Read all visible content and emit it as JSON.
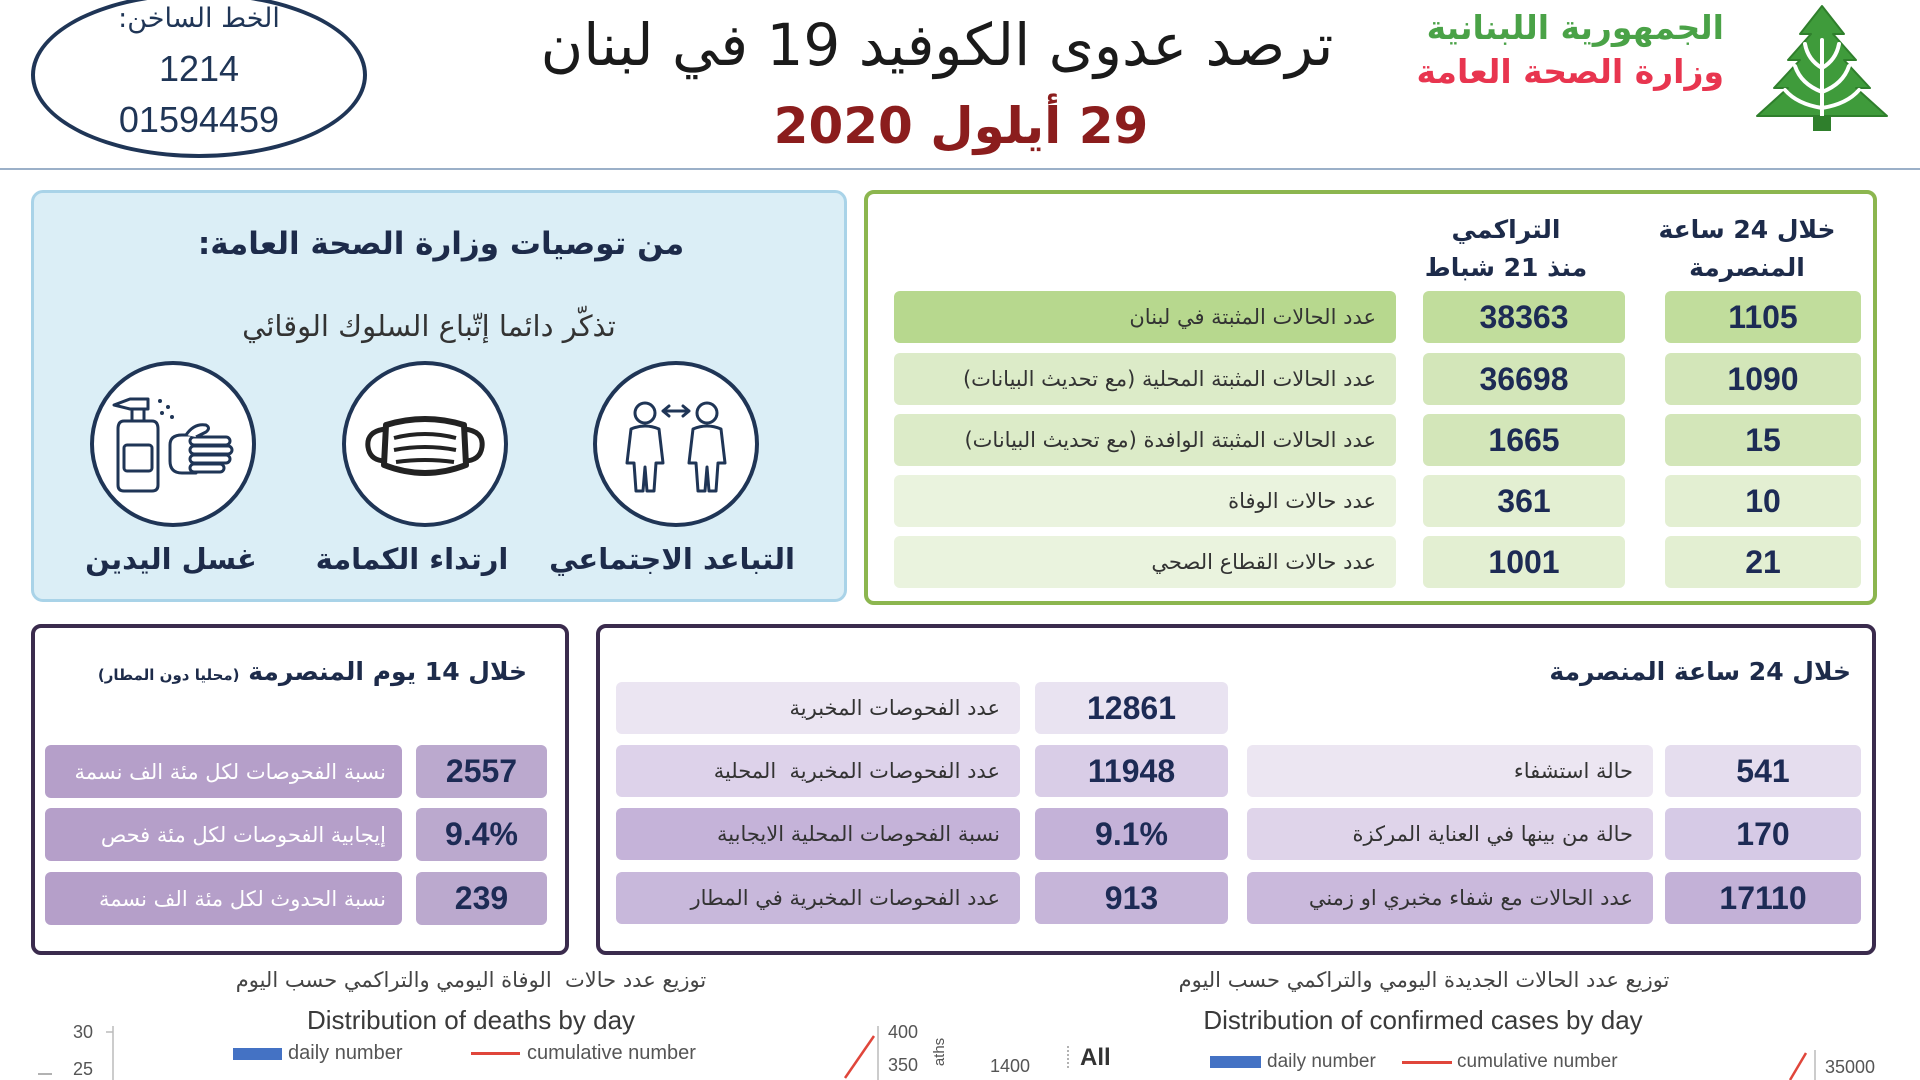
{
  "hotline": {
    "label": "الخط الساخن:",
    "number_short": "1214",
    "number_long": "01594459"
  },
  "header": {
    "title": "ترصد عدوى الكوفيد 19 في لبنان",
    "date": "29 أيلول 2020",
    "org_line1": "الجمهورية اللبنانية",
    "org_line2": "وزارة الصحة العامة",
    "logo_icon": "cedar-icon"
  },
  "recommendations": {
    "title": "من توصيات وزارة الصحة العامة:",
    "subtitle": "تذكّر دائما إتّباع السلوك الوقائي",
    "items": [
      {
        "label": "التباعد الاجتماعي",
        "icon": "social-distancing-icon"
      },
      {
        "label": "ارتداء الكمامة",
        "icon": "face-mask-icon"
      },
      {
        "label": "غسل اليدين",
        "icon": "hand-sanitizer-icon"
      }
    ]
  },
  "summary": {
    "col_last_24h": {
      "line1": "خلال 24 ساعة",
      "line2": "المنصرمة"
    },
    "col_cumulative": {
      "line1": "التراكمي",
      "line2": "منذ 21 شباط"
    },
    "rows": [
      {
        "label": "عدد الحالات المثبتة في لبنان",
        "cumulative": "38363",
        "last_24h": "1105"
      },
      {
        "label": "عدد الحالات المثبتة المحلية (مع تحديث البيانات)",
        "cumulative": "36698",
        "last_24h": "1090"
      },
      {
        "label": "عدد الحالات المثبتة الوافدة (مع تحديث البيانات)",
        "cumulative": "1665",
        "last_24h": "15"
      },
      {
        "label": "عدد حالات الوفاة",
        "cumulative": "361",
        "last_24h": "10"
      },
      {
        "label": "عدد حالات القطاع الصحي",
        "cumulative": "1001",
        "last_24h": "21"
      }
    ]
  },
  "last_14_days": {
    "title": "خلال 14 يوم المنصرمة",
    "note": "(محليا دون المطار)",
    "rows": [
      {
        "label": "نسبة الفحوصات لكل مئة الف نسمة",
        "value": "2557"
      },
      {
        "label": "إيجابية الفحوصات لكل مئة فحص",
        "value": "9.4%"
      },
      {
        "label": "نسبة الحدوث لكل مئة الف نسمة",
        "value": "239"
      }
    ]
  },
  "last_24_hours": {
    "title": "خلال 24 ساعة المنصرمة",
    "tests": [
      {
        "label": "عدد الفحوصات المخبرية",
        "value": "12861"
      },
      {
        "label": "عدد الفحوصات المخبرية  المحلية",
        "value": "11948"
      },
      {
        "label": "نسبة الفحوصات المحلية الايجابية",
        "value": "9.1%"
      },
      {
        "label": "عدد الفحوصات المخبرية في المطار",
        "value": "913"
      }
    ],
    "hospital": [
      {
        "label": "حالة استشفاء",
        "value": "541"
      },
      {
        "label": "حالة من بينها في العناية المركزة",
        "value": "170"
      },
      {
        "label": "عدد الحالات مع شفاء مخبري او زمني",
        "value": "17110"
      }
    ]
  },
  "charts": {
    "deaths": {
      "title_ar": "توزيع عدد حالات  الوفاة اليومي والتراكمي حسب اليوم",
      "title_en": "Distribution of deaths by day",
      "legend_daily": "daily number",
      "legend_cumulative": "cumulative number",
      "left_ticks": [
        "30",
        "25"
      ],
      "right_ticks": [
        "400",
        "350"
      ],
      "right_axis_label_fragment": "aths"
    },
    "fragments": {
      "tick_value": "1400",
      "filter_label": "All"
    },
    "cases": {
      "title_ar": "توزيع عدد الحالات الجديدة اليومي والتراكمي حسب اليوم",
      "title_en": "Distribution of confirmed cases by day",
      "legend_daily": "daily number",
      "legend_cumulative": "cumulative number",
      "right_ticks": [
        "35000"
      ]
    }
  },
  "colors": {
    "navy": "#1f3556",
    "brand_green": "#4aa247",
    "brand_red": "#e8354f",
    "date_red": "#8b1d1d",
    "recommend_bg": "#dbeef6",
    "recommend_border": "#a9d3e8",
    "summary_border": "#8cb64f",
    "purple_border": "#3a2b4d",
    "daily_blue": "#4472c4",
    "cumulative_red": "#e0463b"
  }
}
